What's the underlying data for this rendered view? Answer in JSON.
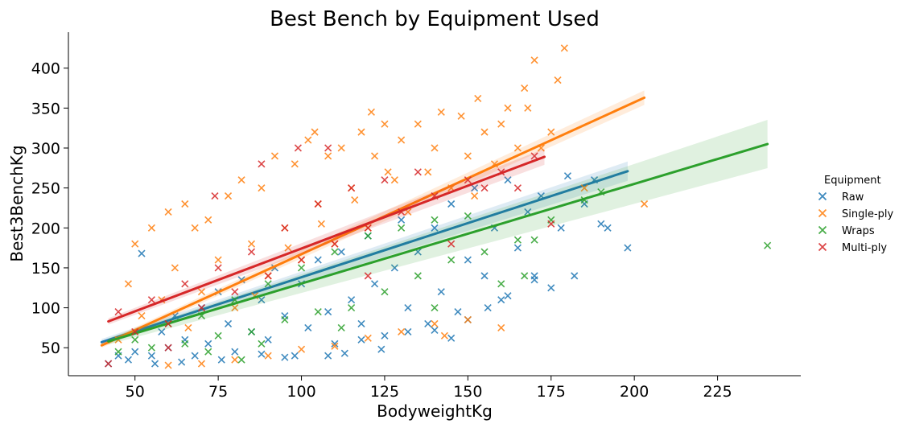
{
  "chart_data": {
    "type": "scatter",
    "title": "Best Bench by Equipment Used",
    "xlabel": "BodyweightKg",
    "ylabel": "Best3BenchKg",
    "xlim": [
      30,
      250
    ],
    "ylim": [
      15,
      445
    ],
    "xticks": [
      50,
      75,
      100,
      125,
      150,
      175,
      200,
      225
    ],
    "yticks": [
      50,
      100,
      150,
      200,
      250,
      300,
      350,
      400
    ],
    "marker": "x",
    "legend": {
      "title": "Equipment",
      "placement": "right"
    },
    "series": [
      {
        "name": "Raw",
        "color": "#1f77b4",
        "fit": {
          "x": [
            40,
            198
          ],
          "y": [
            57,
            271
          ]
        },
        "ci_width": [
          4,
          12
        ],
        "points": [
          [
            42,
            30
          ],
          [
            45,
            40
          ],
          [
            48,
            35
          ],
          [
            50,
            45
          ],
          [
            52,
            168
          ],
          [
            55,
            40
          ],
          [
            58,
            70
          ],
          [
            60,
            50
          ],
          [
            62,
            90
          ],
          [
            65,
            60
          ],
          [
            68,
            40
          ],
          [
            70,
            100
          ],
          [
            72,
            55
          ],
          [
            75,
            120
          ],
          [
            78,
            80
          ],
          [
            80,
            45
          ],
          [
            82,
            135
          ],
          [
            85,
            70
          ],
          [
            88,
            110
          ],
          [
            90,
            60
          ],
          [
            92,
            150
          ],
          [
            95,
            90
          ],
          [
            98,
            40
          ],
          [
            100,
            130
          ],
          [
            102,
            75
          ],
          [
            105,
            160
          ],
          [
            108,
            95
          ],
          [
            110,
            55
          ],
          [
            112,
            170
          ],
          [
            115,
            110
          ],
          [
            118,
            80
          ],
          [
            120,
            190
          ],
          [
            122,
            130
          ],
          [
            125,
            65
          ],
          [
            128,
            150
          ],
          [
            130,
            210
          ],
          [
            132,
            100
          ],
          [
            135,
            170
          ],
          [
            138,
            80
          ],
          [
            140,
            200
          ],
          [
            142,
            120
          ],
          [
            145,
            230
          ],
          [
            147,
            95
          ],
          [
            150,
            160
          ],
          [
            152,
            250
          ],
          [
            155,
            140
          ],
          [
            158,
            200
          ],
          [
            160,
            110
          ],
          [
            162,
            260
          ],
          [
            165,
            175
          ],
          [
            168,
            220
          ],
          [
            170,
            140
          ],
          [
            172,
            240
          ],
          [
            175,
            125
          ],
          [
            178,
            200
          ],
          [
            180,
            265
          ],
          [
            182,
            140
          ],
          [
            185,
            230
          ],
          [
            188,
            260
          ],
          [
            190,
            205
          ],
          [
            192,
            200
          ],
          [
            198,
            175
          ],
          [
            113,
            43
          ],
          [
            118,
            60
          ],
          [
            124,
            48
          ],
          [
            132,
            70
          ],
          [
            140,
            72
          ],
          [
            145,
            62
          ],
          [
            150,
            85
          ],
          [
            156,
            100
          ],
          [
            162,
            115
          ],
          [
            170,
            135
          ],
          [
            108,
            40
          ],
          [
            95,
            38
          ],
          [
            88,
            42
          ],
          [
            76,
            35
          ],
          [
            64,
            32
          ],
          [
            56,
            30
          ]
        ]
      },
      {
        "name": "Single-ply",
        "color": "#ff7f0e",
        "fit": {
          "x": [
            40,
            203
          ],
          "y": [
            53,
            363
          ]
        },
        "ci_width": [
          3,
          9
        ],
        "points": [
          [
            45,
            60
          ],
          [
            48,
            130
          ],
          [
            50,
            180
          ],
          [
            52,
            90
          ],
          [
            55,
            200
          ],
          [
            58,
            110
          ],
          [
            60,
            220
          ],
          [
            62,
            150
          ],
          [
            65,
            230
          ],
          [
            66,
            75
          ],
          [
            68,
            200
          ],
          [
            70,
            120
          ],
          [
            72,
            210
          ],
          [
            75,
            160
          ],
          [
            78,
            240
          ],
          [
            80,
            100
          ],
          [
            82,
            260
          ],
          [
            85,
            180
          ],
          [
            88,
            250
          ],
          [
            90,
            140
          ],
          [
            92,
            290
          ],
          [
            95,
            200
          ],
          [
            98,
            280
          ],
          [
            100,
            160
          ],
          [
            102,
            310
          ],
          [
            104,
            320
          ],
          [
            105,
            230
          ],
          [
            108,
            290
          ],
          [
            110,
            180
          ],
          [
            112,
            300
          ],
          [
            115,
            250
          ],
          [
            118,
            320
          ],
          [
            120,
            200
          ],
          [
            121,
            345
          ],
          [
            122,
            290
          ],
          [
            125,
            330
          ],
          [
            128,
            260
          ],
          [
            130,
            310
          ],
          [
            132,
            220
          ],
          [
            135,
            330
          ],
          [
            138,
            270
          ],
          [
            140,
            300
          ],
          [
            142,
            345
          ],
          [
            145,
            250
          ],
          [
            148,
            340
          ],
          [
            150,
            290
          ],
          [
            152,
            240
          ],
          [
            153,
            362
          ],
          [
            155,
            320
          ],
          [
            158,
            280
          ],
          [
            160,
            330
          ],
          [
            162,
            350
          ],
          [
            165,
            300
          ],
          [
            167,
            375
          ],
          [
            168,
            350
          ],
          [
            170,
            410
          ],
          [
            172,
            300
          ],
          [
            175,
            320
          ],
          [
            177,
            385
          ],
          [
            179,
            425
          ],
          [
            185,
            250
          ],
          [
            203,
            230
          ],
          [
            60,
            28
          ],
          [
            70,
            30
          ],
          [
            80,
            35
          ],
          [
            90,
            40
          ],
          [
            100,
            48
          ],
          [
            110,
            52
          ],
          [
            120,
            62
          ],
          [
            130,
            70
          ],
          [
            140,
            80
          ],
          [
            150,
            85
          ],
          [
            160,
            75
          ],
          [
            143,
            65
          ],
          [
            86,
            115
          ],
          [
            96,
            175
          ],
          [
            106,
            205
          ],
          [
            116,
            235
          ],
          [
            126,
            270
          ]
        ]
      },
      {
        "name": "Wraps",
        "color": "#2ca02c",
        "fit": {
          "x": [
            42,
            240
          ],
          "y": [
            58,
            305
          ]
        },
        "ci_width": [
          4,
          30
        ],
        "points": [
          [
            45,
            45
          ],
          [
            50,
            60
          ],
          [
            55,
            50
          ],
          [
            60,
            80
          ],
          [
            65,
            55
          ],
          [
            70,
            90
          ],
          [
            75,
            65
          ],
          [
            80,
            110
          ],
          [
            85,
            70
          ],
          [
            90,
            130
          ],
          [
            95,
            85
          ],
          [
            100,
            150
          ],
          [
            105,
            95
          ],
          [
            110,
            170
          ],
          [
            115,
            100
          ],
          [
            120,
            190
          ],
          [
            125,
            120
          ],
          [
            130,
            200
          ],
          [
            135,
            140
          ],
          [
            140,
            210
          ],
          [
            145,
            160
          ],
          [
            150,
            215
          ],
          [
            155,
            170
          ],
          [
            160,
            130
          ],
          [
            165,
            185
          ],
          [
            167,
            140
          ],
          [
            170,
            185
          ],
          [
            175,
            210
          ],
          [
            185,
            235
          ],
          [
            190,
            245
          ],
          [
            240,
            178
          ],
          [
            72,
            45
          ],
          [
            88,
            55
          ],
          [
            112,
            75
          ],
          [
            140,
            100
          ],
          [
            82,
            35
          ]
        ]
      },
      {
        "name": "Multi-ply",
        "color": "#d62728",
        "fit": {
          "x": [
            42,
            173
          ],
          "y": [
            83,
            289
          ]
        },
        "ci_width": [
          4,
          10
        ],
        "points": [
          [
            45,
            95
          ],
          [
            50,
            70
          ],
          [
            55,
            110
          ],
          [
            60,
            80
          ],
          [
            65,
            130
          ],
          [
            70,
            100
          ],
          [
            74,
            240
          ],
          [
            75,
            150
          ],
          [
            80,
            120
          ],
          [
            85,
            170
          ],
          [
            88,
            280
          ],
          [
            90,
            140
          ],
          [
            95,
            200
          ],
          [
            99,
            300
          ],
          [
            100,
            160
          ],
          [
            105,
            230
          ],
          [
            108,
            300
          ],
          [
            110,
            180
          ],
          [
            115,
            250
          ],
          [
            120,
            200
          ],
          [
            125,
            260
          ],
          [
            130,
            220
          ],
          [
            135,
            270
          ],
          [
            140,
            240
          ],
          [
            145,
            180
          ],
          [
            150,
            260
          ],
          [
            155,
            250
          ],
          [
            160,
            270
          ],
          [
            165,
            250
          ],
          [
            170,
            290
          ],
          [
            175,
            205
          ],
          [
            42,
            30
          ],
          [
            60,
            50
          ],
          [
            120,
            140
          ]
        ]
      }
    ]
  }
}
